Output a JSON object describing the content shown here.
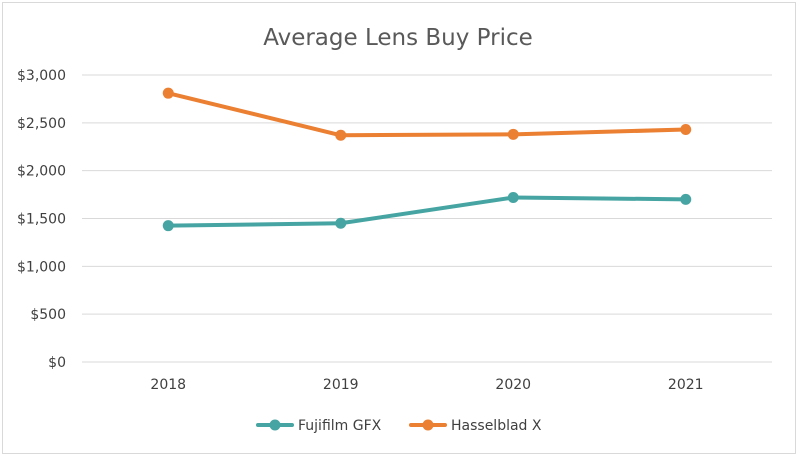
{
  "chart_data": {
    "type": "line",
    "title": "Average Lens Buy Price",
    "xlabel": "",
    "ylabel": "",
    "categories": [
      "2018",
      "2019",
      "2020",
      "2021"
    ],
    "ylim": [
      0,
      3000
    ],
    "y_ticks": [
      0,
      500,
      1000,
      1500,
      2000,
      2500,
      3000
    ],
    "y_tick_labels": [
      "$0",
      "$500",
      "$1,000",
      "$1,500",
      "$2,000",
      "$2,500",
      "$3,000"
    ],
    "grid": true,
    "legend_position": "bottom",
    "series": [
      {
        "name": "Fujifilm GFX",
        "color": "#46A5A2",
        "values": [
          1425,
          1450,
          1720,
          1700
        ]
      },
      {
        "name": "Hasselblad X",
        "color": "#EB7F32",
        "values": [
          2810,
          2370,
          2380,
          2430
        ]
      }
    ]
  }
}
